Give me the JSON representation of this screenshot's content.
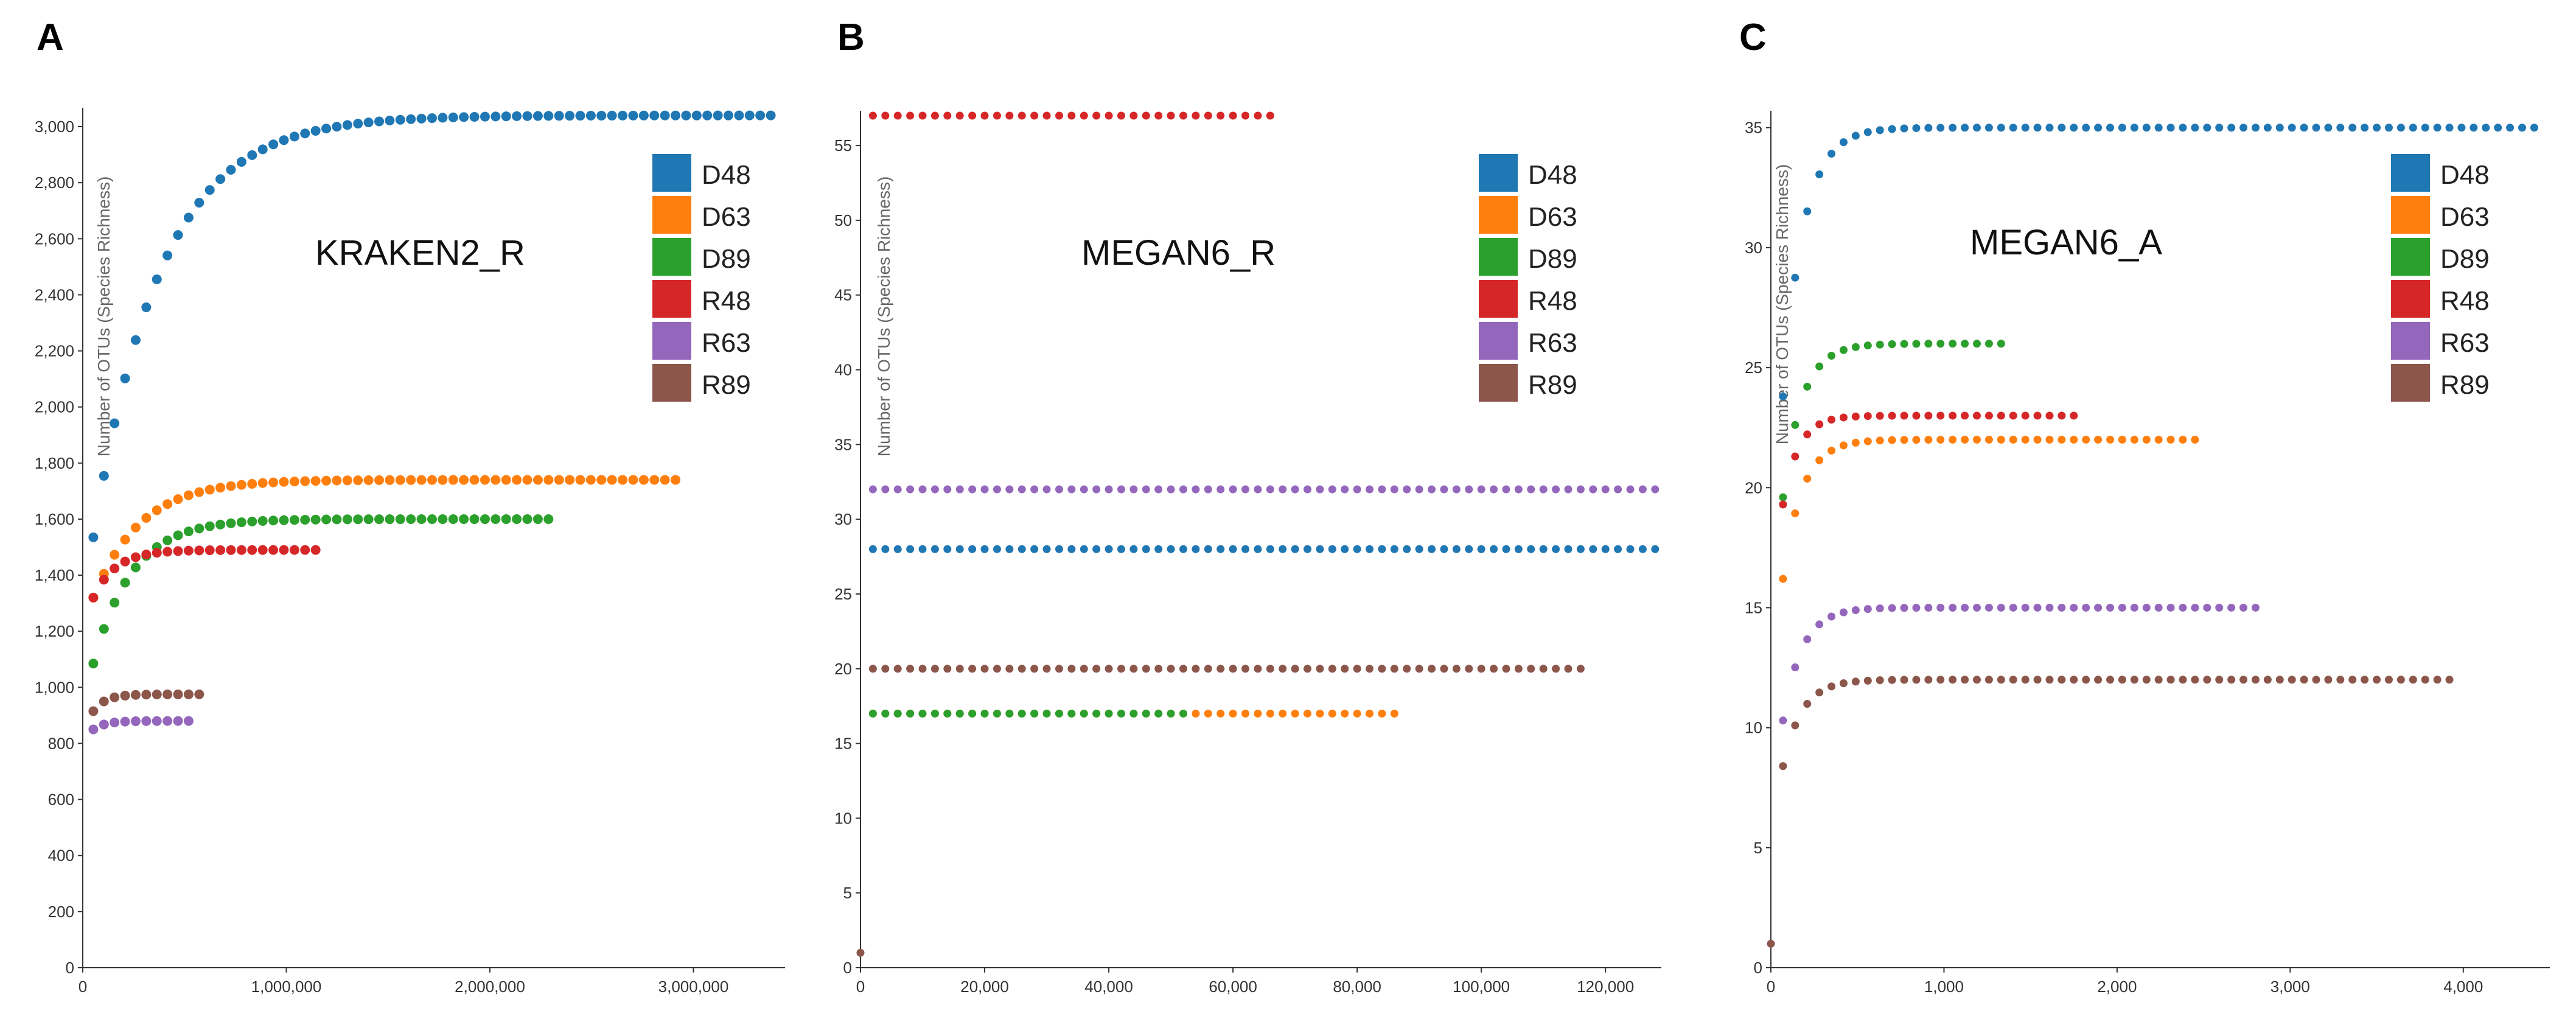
{
  "colors": {
    "D48": "#1f77b4",
    "D63": "#ff7f0e",
    "D89": "#2ca02c",
    "R48": "#d62728",
    "R63": "#9467bd",
    "R89": "#8c564b"
  },
  "chart_data": [
    {
      "panel": "A",
      "type": "scatter",
      "title": "KRAKEN2_R",
      "ylabel": "Number of OTUs (Species Richness)",
      "xlabel": "",
      "xlim": [
        0,
        3450000
      ],
      "ylim": [
        0,
        3050
      ],
      "x_ticks": [
        0,
        1000000,
        2000000,
        3000000
      ],
      "x_tick_labels": [
        "0",
        "1,000,000",
        "2,000,000",
        "3,000,000"
      ],
      "y_ticks": [
        0,
        200,
        400,
        600,
        800,
        1000,
        1200,
        1400,
        1600,
        1800,
        2000,
        2200,
        2400,
        2600,
        2800,
        3000
      ],
      "y_tick_labels": [
        "0",
        "200",
        "400",
        "600",
        "800",
        "1,000",
        "1,200",
        "1,400",
        "1,600",
        "1,800",
        "2,000",
        "2,200",
        "2,400",
        "2,600",
        "2,800",
        "3,000"
      ],
      "legend": [
        "D48",
        "D63",
        "D89",
        "R48",
        "R63",
        "R89"
      ],
      "series": [
        {
          "name": "D48",
          "start": 1535,
          "end": 3040,
          "tau": 330000,
          "x_max": 3430000,
          "step": 52000
        },
        {
          "name": "D63",
          "start": 1320,
          "end": 1740,
          "tau": 230000,
          "x_max": 2920000,
          "step": 52000
        },
        {
          "name": "D89",
          "start": 1085,
          "end": 1600,
          "tau": 190000,
          "x_max": 2330000,
          "step": 52000
        },
        {
          "name": "R48",
          "start": 1320,
          "end": 1490,
          "tau": 110000,
          "x_max": 1190000,
          "step": 52000
        },
        {
          "name": "R63",
          "start": 850,
          "end": 880,
          "tau": 60000,
          "x_max": 520000,
          "step": 52000
        },
        {
          "name": "R89",
          "start": 915,
          "end": 975,
          "tau": 60000,
          "x_max": 620000,
          "step": 52000
        }
      ]
    },
    {
      "panel": "B",
      "type": "scatter",
      "title": "MEGAN6_R",
      "ylabel": "Number of OTUs (Species Richness)",
      "xlabel": "",
      "xlim": [
        0,
        129000
      ],
      "ylim": [
        0,
        57
      ],
      "x_ticks": [
        0,
        20000,
        40000,
        60000,
        80000,
        100000,
        120000
      ],
      "x_tick_labels": [
        "0",
        "20,000",
        "40,000",
        "60,000",
        "80,000",
        "100,000",
        "120,000"
      ],
      "y_ticks": [
        0,
        5,
        10,
        15,
        20,
        25,
        30,
        35,
        40,
        45,
        50,
        55
      ],
      "y_tick_labels": [
        "0",
        "5",
        "10",
        "15",
        "20",
        "25",
        "30",
        "35",
        "40",
        "45",
        "50",
        "55"
      ],
      "legend": [
        "D48",
        "D63",
        "D89",
        "R48",
        "R63",
        "R89"
      ],
      "series": [
        {
          "name": "R48",
          "start": 57,
          "end": 57,
          "tau": 1,
          "x_max": 67500,
          "step": 2000
        },
        {
          "name": "R63",
          "start": 32,
          "end": 32,
          "tau": 1,
          "x_max": 129000,
          "step": 2000
        },
        {
          "name": "D48",
          "start": 28,
          "end": 28,
          "tau": 1,
          "x_max": 129000,
          "step": 2000
        },
        {
          "name": "R89",
          "start": 20,
          "end": 20,
          "tau": 1,
          "x_max": 117000,
          "step": 2000
        },
        {
          "name": "D63",
          "start": 17,
          "end": 17,
          "tau": 1,
          "x_max": 86500,
          "step": 2000
        },
        {
          "name": "D89",
          "start": 17,
          "end": 17,
          "tau": 1,
          "x_max": 53500,
          "step": 2000
        }
      ],
      "extra_points": [
        {
          "name": "R89",
          "x": 0,
          "y": 1
        }
      ]
    },
    {
      "panel": "C",
      "type": "scatter",
      "title": "MEGAN6_A",
      "ylabel": "Number of OTUs (Species Richness)",
      "xlabel": "",
      "xlim": [
        0,
        4500
      ],
      "ylim": [
        0,
        35.5
      ],
      "x_ticks": [
        0,
        1000,
        2000,
        3000,
        4000
      ],
      "x_tick_labels": [
        "0",
        "1,000",
        "2,000",
        "3,000",
        "4,000"
      ],
      "y_ticks": [
        0,
        5,
        10,
        15,
        20,
        25,
        30,
        35
      ],
      "y_tick_labels": [
        "0",
        "5",
        "10",
        "15",
        "20",
        "25",
        "30",
        "35"
      ],
      "legend": [
        "D48",
        "D63",
        "D89",
        "R48",
        "R63",
        "R89"
      ],
      "series": [
        {
          "name": "D48",
          "start": 23.8,
          "end": 35,
          "tau": 120,
          "x_max": 4460,
          "step": 70
        },
        {
          "name": "D63",
          "start": 16.2,
          "end": 22,
          "tau": 110,
          "x_max": 2480,
          "step": 70
        },
        {
          "name": "D89",
          "start": 19.6,
          "end": 26,
          "tau": 110,
          "x_max": 1330,
          "step": 70
        },
        {
          "name": "R48",
          "start": 19.3,
          "end": 23,
          "tau": 90,
          "x_max": 1760,
          "step": 70
        },
        {
          "name": "R63",
          "start": 10.3,
          "end": 15,
          "tau": 110,
          "x_max": 2830,
          "step": 70
        },
        {
          "name": "R89",
          "start": 8.4,
          "end": 12,
          "tau": 110,
          "x_max": 3930,
          "step": 70
        }
      ],
      "extra_points": [
        {
          "name": "R89",
          "x": 0,
          "y": 1
        }
      ]
    }
  ]
}
